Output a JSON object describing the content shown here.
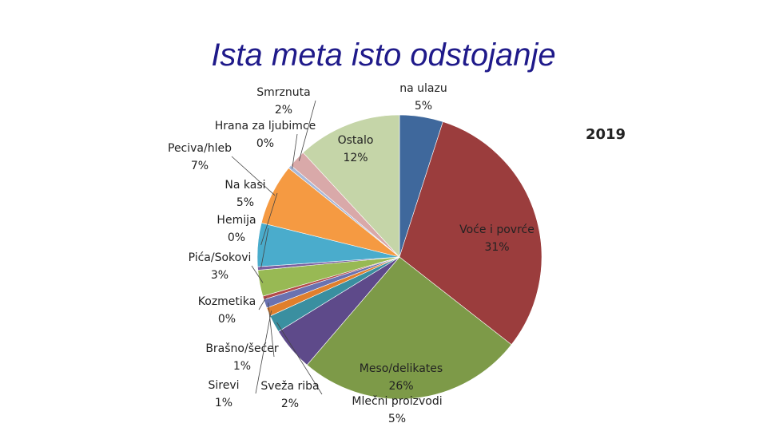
{
  "chart_data": {
    "type": "pie",
    "title": "Ista meta isto odstojanje",
    "subtitle": "2019",
    "categories": [
      "na ulazu",
      "Voće i povrće",
      "Meso/delikates",
      "Mlečni proizvodi",
      "Sveža riba",
      "Sirevi",
      "Brašno/šećer",
      "Kozmetika",
      "Pića/Sokovi",
      "Hemija",
      "Na kasi",
      "Peciva/hleb",
      "Hrana za ljubimce",
      "Smrznuta",
      "Ostalo"
    ],
    "values": [
      5,
      31,
      26,
      5,
      2,
      1,
      1,
      0.4,
      3,
      0.4,
      5,
      7,
      0.4,
      2,
      12
    ],
    "value_labels": [
      "5%",
      "31%",
      "26%",
      "5%",
      "2%",
      "1%",
      "1%",
      "0%",
      "3%",
      "0%",
      "5%",
      "7%",
      "0%",
      "2%",
      "12%"
    ],
    "colors": [
      "#3f689c",
      "#9b3d3d",
      "#7d9a48",
      "#5e4a8a",
      "#3a8fa0",
      "#e07f2c",
      "#6a72b0",
      "#b24a4a",
      "#98b954",
      "#7a5fa0",
      "#4aaccc",
      "#f59a42",
      "#a8b8d8",
      "#d9a9a9",
      "#c5d5a8"
    ]
  }
}
